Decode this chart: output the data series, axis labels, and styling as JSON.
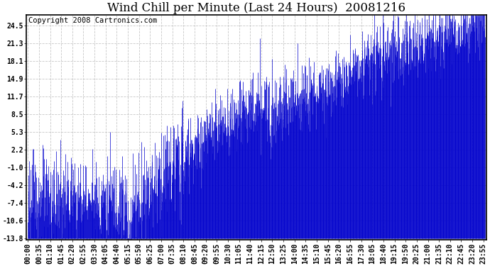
{
  "title": "Wind Chill per Minute (Last 24 Hours)  20081216",
  "copyright": "Copyright 2008 Cartronics.com",
  "ylabel_values": [
    24.5,
    21.3,
    18.1,
    14.9,
    11.7,
    8.5,
    5.3,
    2.2,
    -1.0,
    -4.2,
    -7.4,
    -10.6,
    -13.8
  ],
  "y_min": -13.8,
  "y_max": 26.5,
  "line_color": "#0000CC",
  "bg_color": "#ffffff",
  "grid_color": "#c8c8c8",
  "title_fontsize": 12,
  "copyright_fontsize": 7.5,
  "tick_fontsize": 7,
  "tick_times_str": [
    "00:00",
    "00:35",
    "01:10",
    "01:45",
    "02:20",
    "02:55",
    "03:30",
    "04:05",
    "04:40",
    "05:15",
    "05:50",
    "06:25",
    "07:00",
    "07:35",
    "08:10",
    "08:45",
    "09:20",
    "09:55",
    "10:30",
    "11:05",
    "11:40",
    "12:15",
    "12:50",
    "13:25",
    "14:00",
    "14:35",
    "15:10",
    "15:45",
    "16:20",
    "16:55",
    "17:30",
    "18:05",
    "18:40",
    "19:15",
    "19:50",
    "20:25",
    "21:00",
    "21:35",
    "22:10",
    "22:45",
    "23:20",
    "23:55"
  ]
}
